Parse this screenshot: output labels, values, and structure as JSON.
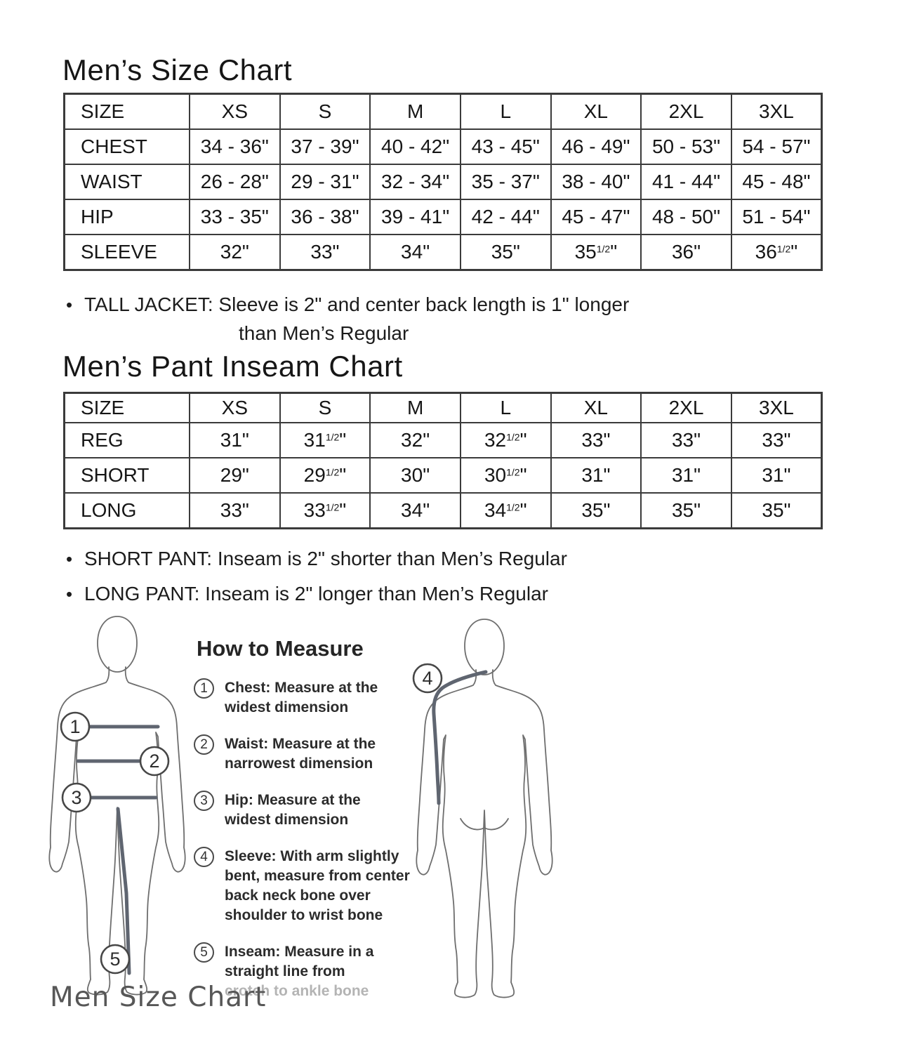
{
  "size_chart": {
    "title": "Men’s Size Chart",
    "headers": [
      "SIZE",
      "XS",
      "S",
      "M",
      "L",
      "XL",
      "2XL",
      "3XL"
    ],
    "rows": [
      {
        "label": "CHEST",
        "values": [
          "34 - 36\"",
          "37 - 39\"",
          "40 - 42\"",
          "43 - 45\"",
          "46 - 49\"",
          "50 - 53\"",
          "54 - 57\""
        ]
      },
      {
        "label": "WAIST",
        "values": [
          "26 - 28\"",
          "29 - 31\"",
          "32 - 34\"",
          "35 - 37\"",
          "38 - 40\"",
          "41 - 44\"",
          "45 - 48\""
        ]
      },
      {
        "label": "HIP",
        "values": [
          "33 - 35\"",
          "36 - 38\"",
          "39 - 41\"",
          "42 - 44\"",
          "45 - 47\"",
          "48 - 50\"",
          "51 - 54\""
        ]
      },
      {
        "label": "SLEEVE",
        "values": [
          "32\"",
          "33\"",
          "34\"",
          "35\"",
          "35½\"",
          "36\"",
          "36½\""
        ]
      }
    ]
  },
  "inseam_chart": {
    "title": "Men’s Pant Inseam Chart",
    "headers": [
      "SIZE",
      "XS",
      "S",
      "M",
      "L",
      "XL",
      "2XL",
      "3XL"
    ],
    "rows": [
      {
        "label": "REG",
        "values": [
          "31\"",
          "31½\"",
          "32\"",
          "32½\"",
          "33\"",
          "33\"",
          "33\""
        ]
      },
      {
        "label": "SHORT",
        "values": [
          "29\"",
          "29½\"",
          "30\"",
          "30½\"",
          "31\"",
          "31\"",
          "31\""
        ]
      },
      {
        "label": "LONG",
        "values": [
          "33\"",
          "33½\"",
          "34\"",
          "34½\"",
          "35\"",
          "35\"",
          "35\""
        ]
      }
    ]
  },
  "notes": {
    "bullet": "•",
    "tall_jacket_line1": "TALL JACKET: Sleeve is 2\" and center back length is 1\" longer",
    "tall_jacket_line2": "than Men’s Regular",
    "short_pant": "SHORT PANT: Inseam is 2\" shorter than Men’s Regular",
    "long_pant": "LONG PANT: Inseam is 2\" longer than Men’s Regular"
  },
  "how_to_measure": {
    "heading": "How to Measure",
    "items": [
      {
        "num": "1",
        "lines": [
          "Chest: Measure at the",
          "widest dimension"
        ]
      },
      {
        "num": "2",
        "lines": [
          "Waist: Measure at the",
          "narrowest dimension"
        ]
      },
      {
        "num": "3",
        "lines": [
          "Hip: Measure at the",
          "widest dimension"
        ]
      },
      {
        "num": "4",
        "lines": [
          "Sleeve: With arm slightly",
          "bent, measure from center",
          "back neck bone over",
          "shoulder to wrist bone"
        ]
      },
      {
        "num": "5",
        "lines": [
          "Inseam: Measure in a",
          "straight line from",
          "crotch to ankle bone"
        ],
        "faded_from": 2
      }
    ]
  },
  "figures": {
    "front_markers": [
      "1",
      "2",
      "3",
      "5"
    ],
    "back_markers": [
      "4"
    ]
  },
  "watermark": "Men Size Chart",
  "colors": {
    "table_border": "#3b3b3b",
    "text": "#161616",
    "figure_outline": "#6e6e6e",
    "measure_line": "#5f6570",
    "faded_text": "#b4b4b4",
    "watermark": "#575757"
  }
}
